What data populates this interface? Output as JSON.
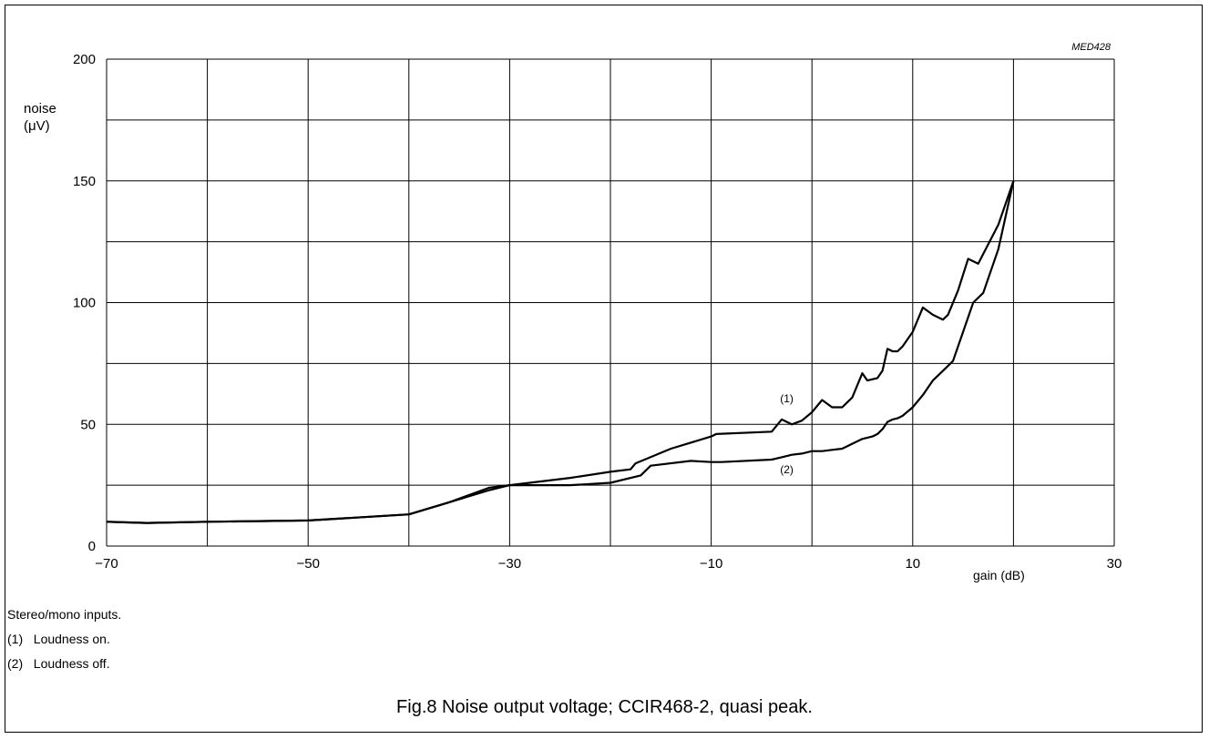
{
  "chart_data": {
    "type": "line",
    "code": "MED428",
    "ylabel_lines": [
      "noise",
      "(μV)"
    ],
    "xlabel": "gain (dB)",
    "xlim": [
      -70,
      30
    ],
    "ylim": [
      0,
      200
    ],
    "x_ticks": [
      -70,
      -50,
      -30,
      -10,
      10,
      30
    ],
    "x_tick_labels": [
      "−70",
      "−50",
      "−30",
      "−10",
      "10",
      "30"
    ],
    "y_ticks": [
      0,
      50,
      100,
      150,
      200
    ],
    "y_tick_labels": [
      "0",
      "50",
      "100",
      "150",
      "200"
    ],
    "x_grid_step": 10,
    "y_grid_step": 25,
    "grid": true,
    "series": [
      {
        "name": "(1)",
        "label_at": [
          -2.5,
          59
        ],
        "x": [
          -70,
          -66,
          -60,
          -50,
          -40,
          -36,
          -32,
          -30,
          -24,
          -20,
          -18,
          -17.5,
          -14,
          -10,
          -9.5,
          -4,
          -3,
          -2,
          -1,
          0,
          1,
          2,
          3,
          4,
          5,
          5.5,
          6.5,
          7,
          7.5,
          8,
          8.5,
          9,
          10,
          11,
          12,
          13,
          13.5,
          14.5,
          15.5,
          16.5,
          17,
          18.5,
          20
        ],
        "y": [
          10,
          9.5,
          10,
          10.5,
          13,
          18,
          24,
          25,
          28,
          30.5,
          31.5,
          34,
          40,
          45,
          46,
          47,
          52,
          50,
          51.5,
          55,
          60,
          57,
          57,
          61,
          71,
          68,
          69,
          72,
          81,
          80,
          80,
          82,
          88,
          98,
          95,
          93,
          95,
          105,
          118,
          116,
          120,
          132,
          150
        ]
      },
      {
        "name": "(2)",
        "label_at": [
          -2.5,
          30
        ],
        "x": [
          -70,
          -66,
          -60,
          -50,
          -40,
          -36,
          -32,
          -30,
          -24,
          -20,
          -17,
          -16,
          -12,
          -10,
          -9,
          -4,
          -3,
          -2,
          -1,
          0,
          1,
          2,
          3,
          4,
          5,
          6,
          6.5,
          7,
          7.5,
          8,
          8.5,
          9,
          10,
          11,
          12,
          13,
          14,
          15,
          16,
          17,
          18.5,
          20
        ],
        "y": [
          10,
          9.5,
          10,
          10.5,
          13,
          18,
          23,
          25,
          25,
          26,
          29,
          33,
          35,
          34.5,
          34.5,
          35.5,
          36.5,
          37.5,
          38,
          39,
          39,
          39.5,
          40,
          42,
          44,
          45,
          46,
          48,
          51,
          52,
          52.5,
          53.5,
          57,
          62,
          68,
          72,
          76,
          88,
          100,
          104,
          122,
          150
        ]
      }
    ]
  },
  "notes": [
    "Stereo/mono inputs.",
    "(1)   Loudness on.",
    "(2)   Loudness off."
  ],
  "caption": "Fig.8  Noise output voltage; CCIR468-2, quasi peak."
}
